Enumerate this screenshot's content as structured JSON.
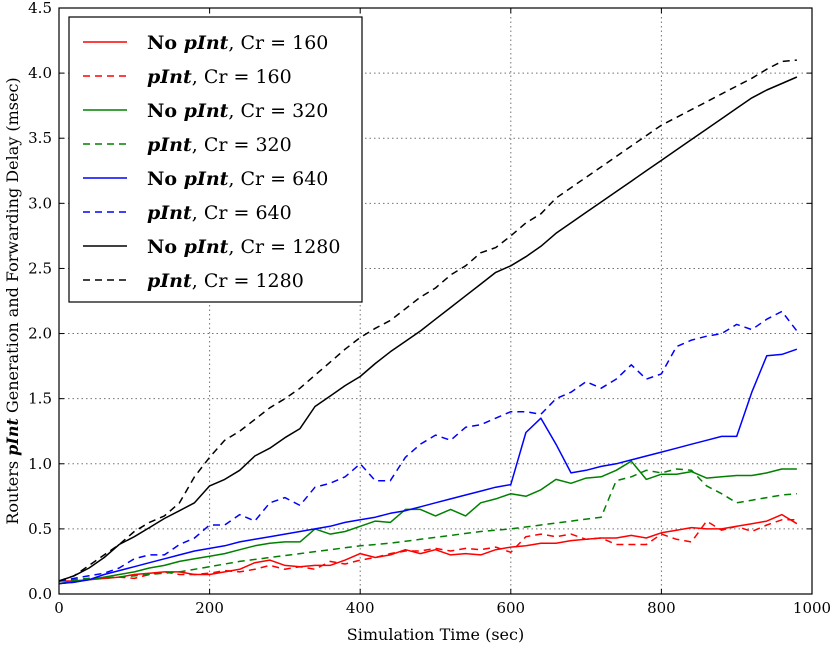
{
  "chart_data": {
    "type": "line",
    "title": "",
    "xlabel": "Simulation Time (sec)",
    "ylabel_parts": [
      "Routers ",
      "pInt",
      " Generation and Forwarding Delay (msec)"
    ],
    "xlim": [
      0,
      1000
    ],
    "ylim": [
      0,
      4.5
    ],
    "xticks": [
      0,
      200,
      400,
      600,
      800,
      1000
    ],
    "yticks": [
      0.0,
      0.5,
      1.0,
      1.5,
      2.0,
      2.5,
      3.0,
      3.5,
      4.0,
      4.5
    ],
    "grid": true,
    "legend_position": "top-left",
    "series": [
      {
        "name": "No pInt, Cr = 160",
        "legend_prefix": "No ",
        "legend_italic": "pInt",
        "legend_suffix": ", Cr = 160",
        "color": "#ff0000",
        "dashed": false,
        "x": [
          0,
          20,
          40,
          60,
          80,
          100,
          120,
          140,
          160,
          180,
          200,
          220,
          240,
          260,
          280,
          300,
          320,
          340,
          360,
          380,
          400,
          420,
          440,
          460,
          480,
          500,
          520,
          540,
          560,
          580,
          600,
          620,
          640,
          660,
          680,
          700,
          720,
          740,
          760,
          780,
          800,
          820,
          840,
          860,
          880,
          900,
          920,
          940,
          960,
          980
        ],
        "y": [
          0.1,
          0.1,
          0.11,
          0.12,
          0.13,
          0.15,
          0.16,
          0.17,
          0.17,
          0.15,
          0.15,
          0.17,
          0.19,
          0.24,
          0.26,
          0.22,
          0.21,
          0.22,
          0.22,
          0.26,
          0.31,
          0.28,
          0.3,
          0.34,
          0.31,
          0.34,
          0.3,
          0.31,
          0.3,
          0.34,
          0.36,
          0.37,
          0.39,
          0.39,
          0.41,
          0.42,
          0.43,
          0.43,
          0.45,
          0.43,
          0.47,
          0.49,
          0.51,
          0.5,
          0.5,
          0.52,
          0.54,
          0.56,
          0.61,
          0.54
        ]
      },
      {
        "name": "pInt, Cr = 160",
        "legend_prefix": "",
        "legend_italic": "pInt",
        "legend_suffix": ", Cr = 160",
        "color": "#ff0000",
        "dashed": true,
        "x": [
          0,
          20,
          40,
          60,
          80,
          100,
          120,
          140,
          160,
          180,
          200,
          220,
          240,
          260,
          280,
          300,
          320,
          340,
          360,
          380,
          400,
          420,
          440,
          460,
          480,
          500,
          520,
          540,
          560,
          580,
          600,
          620,
          640,
          660,
          680,
          700,
          720,
          740,
          760,
          780,
          800,
          820,
          840,
          860,
          880,
          900,
          920,
          940,
          960,
          980
        ],
        "y": [
          0.08,
          0.09,
          0.12,
          0.12,
          0.13,
          0.12,
          0.15,
          0.17,
          0.15,
          0.15,
          0.16,
          0.18,
          0.17,
          0.19,
          0.22,
          0.19,
          0.21,
          0.19,
          0.25,
          0.23,
          0.26,
          0.28,
          0.31,
          0.33,
          0.33,
          0.35,
          0.33,
          0.35,
          0.34,
          0.36,
          0.32,
          0.44,
          0.46,
          0.44,
          0.46,
          0.42,
          0.43,
          0.38,
          0.38,
          0.38,
          0.46,
          0.42,
          0.4,
          0.56,
          0.49,
          0.52,
          0.48,
          0.53,
          0.57,
          0.57
        ]
      },
      {
        "name": "No pInt, Cr = 320",
        "legend_prefix": "No ",
        "legend_italic": "pInt",
        "legend_suffix": ", Cr = 320",
        "color": "#008000",
        "dashed": false,
        "x": [
          0,
          20,
          40,
          60,
          80,
          100,
          120,
          140,
          160,
          180,
          200,
          220,
          240,
          260,
          280,
          300,
          320,
          340,
          360,
          380,
          400,
          420,
          440,
          460,
          480,
          500,
          520,
          540,
          560,
          580,
          600,
          620,
          640,
          660,
          680,
          700,
          720,
          740,
          760,
          780,
          800,
          820,
          840,
          860,
          880,
          900,
          920,
          940,
          960,
          980
        ],
        "y": [
          0.08,
          0.1,
          0.11,
          0.13,
          0.15,
          0.17,
          0.2,
          0.22,
          0.25,
          0.27,
          0.29,
          0.31,
          0.34,
          0.37,
          0.39,
          0.4,
          0.4,
          0.5,
          0.46,
          0.48,
          0.52,
          0.56,
          0.55,
          0.65,
          0.65,
          0.6,
          0.65,
          0.6,
          0.7,
          0.73,
          0.77,
          0.75,
          0.8,
          0.88,
          0.85,
          0.89,
          0.9,
          0.95,
          1.02,
          0.88,
          0.92,
          0.92,
          0.94,
          0.89,
          0.9,
          0.91,
          0.91,
          0.93,
          0.96,
          0.96
        ]
      },
      {
        "name": "pInt, Cr = 320",
        "legend_prefix": "",
        "legend_italic": "pInt",
        "legend_suffix": ", Cr = 320",
        "color": "#008000",
        "dashed": true,
        "x": [
          0,
          40,
          80,
          120,
          160,
          200,
          240,
          280,
          320,
          360,
          400,
          440,
          480,
          520,
          560,
          600,
          640,
          680,
          720,
          740,
          760,
          780,
          800,
          820,
          840,
          860,
          880,
          900,
          920,
          940,
          960,
          980
        ],
        "y": [
          0.1,
          0.12,
          0.13,
          0.15,
          0.17,
          0.21,
          0.25,
          0.28,
          0.31,
          0.34,
          0.37,
          0.39,
          0.42,
          0.45,
          0.48,
          0.5,
          0.53,
          0.56,
          0.59,
          0.87,
          0.9,
          0.95,
          0.93,
          0.96,
          0.95,
          0.83,
          0.77,
          0.7,
          0.72,
          0.74,
          0.76,
          0.77
        ]
      },
      {
        "name": "No pInt, Cr = 640",
        "legend_prefix": "No ",
        "legend_italic": "pInt",
        "legend_suffix": ", Cr = 640",
        "color": "#0000ff",
        "dashed": false,
        "x": [
          0,
          20,
          40,
          60,
          80,
          100,
          120,
          140,
          160,
          180,
          200,
          220,
          240,
          260,
          280,
          300,
          320,
          340,
          360,
          380,
          400,
          420,
          440,
          460,
          480,
          500,
          520,
          540,
          560,
          580,
          600,
          620,
          640,
          660,
          680,
          700,
          720,
          740,
          760,
          780,
          800,
          820,
          840,
          860,
          880,
          900,
          920,
          940,
          960,
          980
        ],
        "y": [
          0.08,
          0.09,
          0.11,
          0.15,
          0.18,
          0.21,
          0.24,
          0.27,
          0.3,
          0.33,
          0.35,
          0.37,
          0.4,
          0.42,
          0.44,
          0.46,
          0.48,
          0.5,
          0.52,
          0.55,
          0.57,
          0.59,
          0.62,
          0.64,
          0.67,
          0.7,
          0.73,
          0.76,
          0.79,
          0.82,
          0.84,
          1.24,
          1.35,
          1.15,
          0.93,
          0.95,
          0.98,
          1.0,
          1.03,
          1.06,
          1.09,
          1.12,
          1.15,
          1.18,
          1.21,
          1.21,
          1.55,
          1.83,
          1.84,
          1.88
        ]
      },
      {
        "name": "pInt, Cr = 640",
        "legend_prefix": "",
        "legend_italic": "pInt",
        "legend_suffix": ", Cr = 640",
        "color": "#0000ff",
        "dashed": true,
        "x": [
          0,
          20,
          40,
          60,
          80,
          100,
          120,
          140,
          160,
          180,
          200,
          220,
          240,
          260,
          280,
          300,
          320,
          340,
          360,
          380,
          400,
          420,
          440,
          460,
          480,
          500,
          520,
          540,
          560,
          580,
          600,
          620,
          640,
          660,
          680,
          700,
          720,
          740,
          760,
          780,
          800,
          820,
          840,
          860,
          880,
          900,
          920,
          940,
          960,
          980
        ],
        "y": [
          0.1,
          0.12,
          0.14,
          0.16,
          0.2,
          0.27,
          0.3,
          0.3,
          0.38,
          0.43,
          0.53,
          0.53,
          0.61,
          0.56,
          0.7,
          0.74,
          0.68,
          0.82,
          0.85,
          0.9,
          1.0,
          0.87,
          0.87,
          1.05,
          1.15,
          1.22,
          1.18,
          1.28,
          1.3,
          1.35,
          1.4,
          1.4,
          1.38,
          1.5,
          1.55,
          1.63,
          1.58,
          1.65,
          1.76,
          1.65,
          1.69,
          1.9,
          1.95,
          1.98,
          2.0,
          2.07,
          2.03,
          2.11,
          2.17,
          2.02
        ]
      },
      {
        "name": "No pInt, Cr = 1280",
        "legend_prefix": "No ",
        "legend_italic": "pInt",
        "legend_suffix": ", Cr = 1280",
        "color": "#000000",
        "dashed": false,
        "x": [
          0,
          20,
          40,
          60,
          80,
          100,
          120,
          140,
          160,
          180,
          200,
          220,
          240,
          260,
          280,
          300,
          320,
          340,
          360,
          380,
          400,
          420,
          440,
          460,
          480,
          500,
          520,
          540,
          560,
          580,
          600,
          620,
          640,
          660,
          680,
          700,
          720,
          740,
          760,
          780,
          800,
          820,
          840,
          860,
          880,
          900,
          920,
          940,
          960,
          980
        ],
        "y": [
          0.1,
          0.14,
          0.2,
          0.28,
          0.38,
          0.44,
          0.51,
          0.58,
          0.64,
          0.7,
          0.83,
          0.88,
          0.95,
          1.06,
          1.12,
          1.2,
          1.27,
          1.44,
          1.52,
          1.6,
          1.67,
          1.77,
          1.86,
          1.94,
          2.02,
          2.11,
          2.2,
          2.29,
          2.38,
          2.47,
          2.52,
          2.59,
          2.67,
          2.77,
          2.85,
          2.93,
          3.01,
          3.09,
          3.17,
          3.25,
          3.33,
          3.41,
          3.49,
          3.57,
          3.65,
          3.73,
          3.81,
          3.87,
          3.92,
          3.97
        ]
      },
      {
        "name": "pInt, Cr = 1280",
        "legend_prefix": "",
        "legend_italic": "pInt",
        "legend_suffix": ", Cr = 1280",
        "color": "#000000",
        "dashed": true,
        "x": [
          0,
          20,
          40,
          60,
          80,
          100,
          120,
          140,
          160,
          180,
          200,
          220,
          240,
          260,
          280,
          300,
          320,
          340,
          360,
          380,
          400,
          420,
          440,
          460,
          480,
          500,
          520,
          540,
          560,
          580,
          600,
          620,
          640,
          660,
          680,
          700,
          720,
          740,
          760,
          780,
          800,
          820,
          840,
          860,
          880,
          900,
          920,
          940,
          960,
          980
        ],
        "y": [
          0.1,
          0.14,
          0.22,
          0.3,
          0.38,
          0.48,
          0.55,
          0.6,
          0.7,
          0.9,
          1.05,
          1.18,
          1.25,
          1.34,
          1.43,
          1.5,
          1.58,
          1.68,
          1.78,
          1.88,
          1.97,
          2.04,
          2.1,
          2.19,
          2.28,
          2.35,
          2.45,
          2.52,
          2.62,
          2.66,
          2.75,
          2.85,
          2.92,
          3.04,
          3.12,
          3.2,
          3.28,
          3.36,
          3.44,
          3.52,
          3.6,
          3.66,
          3.72,
          3.78,
          3.84,
          3.9,
          3.96,
          4.03,
          4.09,
          4.1
        ]
      }
    ]
  }
}
